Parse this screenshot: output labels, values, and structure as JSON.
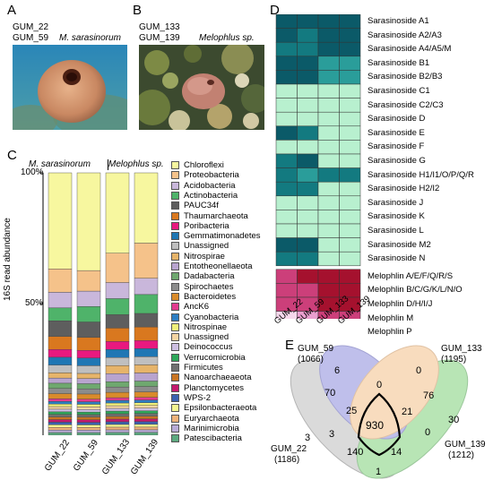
{
  "panels": {
    "A": "A",
    "B": "B",
    "C": "C",
    "D": "D",
    "E": "E"
  },
  "panelA": {
    "sample1": "GUM_22",
    "sample2": "GUM_59",
    "species": "M. sarasinorum"
  },
  "panelB": {
    "sample1": "GUM_133",
    "sample2": "GUM_139",
    "species": "Melophlus sp."
  },
  "panelC": {
    "species1": "M. sarasinorum",
    "species2": "Melophlus sp.",
    "ylabel": "16S read abundance",
    "yticks": [
      "100%",
      "50%"
    ]
  },
  "colors": {
    "Chloroflexi": "#f7f79f",
    "Proteobacteria": "#f5c28a",
    "Acidobacteria": "#c9b7db",
    "Actinobacteria": "#4fb36a",
    "PAUC34f": "#5e5e5e",
    "Thaumarchaeota": "#d9781f",
    "Poribacteria": "#e8197f",
    "Gemmatimonadetes": "#1f77b4",
    "Unassigned": "#bfbfbf",
    "Nitrospirae": "#e6b46a",
    "Entotheonellaeota": "#b8a4cf",
    "Dadabacteria": "#6fa86f",
    "Spirochaetes": "#8c8c8c",
    "Bacteroidetes": "#d98b2b",
    "AncK6": "#e33b8f",
    "Cyanobacteria": "#2e7ec2",
    "Nitrospinae": "#f0f07a",
    "Unassigned2": "#f4d4a2",
    "Deinococcus": "#cdbfe2",
    "Verrucomicrobia": "#2fa85a",
    "Firmicutes": "#707070",
    "Nanoarchaeaeota": "#c97522",
    "Planctomycetes": "#c41a6e",
    "WPS-2": "#3a62b0",
    "Epsilonbacteraeota": "#f5f58f",
    "Euryarchaeota": "#efb27a",
    "Marinimicrobia": "#b9abd6",
    "Patescibacteria": "#5daa80"
  },
  "chart_data": [
    {
      "type": "bar",
      "stacked": true,
      "orientation": "vertical",
      "categories": [
        "GUM_22",
        "GUM_59",
        "GUM_133",
        "GUM_139"
      ],
      "ylabel": "16S read abundance",
      "ylim": [
        0,
        100
      ],
      "legend_position": "right",
      "series": [
        {
          "name": "Chloroflexi",
          "values": [
            37,
            38,
            30,
            26
          ]
        },
        {
          "name": "Proteobacteria",
          "values": [
            9,
            8,
            11,
            13
          ]
        },
        {
          "name": "Acidobacteria",
          "values": [
            6,
            6,
            6,
            6
          ]
        },
        {
          "name": "Actinobacteria",
          "values": [
            5,
            6,
            6,
            7
          ]
        },
        {
          "name": "PAUC34f",
          "values": [
            6,
            6,
            5,
            5
          ]
        },
        {
          "name": "Thaumarchaeota",
          "values": [
            5,
            5,
            5,
            5
          ]
        },
        {
          "name": "Poribacteria",
          "values": [
            3,
            3,
            3,
            3
          ]
        },
        {
          "name": "Gemmatimonadetes",
          "values": [
            3,
            3,
            3,
            3
          ]
        },
        {
          "name": "Unassigned",
          "values": [
            3,
            3,
            3,
            3
          ]
        },
        {
          "name": "Nitrospirae",
          "values": [
            2,
            2,
            3,
            3
          ]
        },
        {
          "name": "Entotheonellaeota",
          "values": [
            2,
            2,
            3,
            3
          ]
        },
        {
          "name": "Dadabacteria",
          "values": [
            2,
            2,
            2,
            2
          ]
        },
        {
          "name": "Spirochaetes",
          "values": [
            2,
            2,
            2,
            2
          ]
        },
        {
          "name": "Bacteroidetes",
          "values": [
            2,
            2,
            2,
            2
          ]
        },
        {
          "name": "AncK6",
          "values": [
            1,
            1,
            1,
            1
          ]
        },
        {
          "name": "Cyanobacteria",
          "values": [
            1,
            1,
            1,
            1
          ]
        },
        {
          "name": "Nitrospinae",
          "values": [
            1,
            1,
            1,
            1
          ]
        },
        {
          "name": "Unassigned",
          "values": [
            1,
            1,
            1,
            1
          ]
        },
        {
          "name": "Deinococcus",
          "values": [
            1,
            1,
            1,
            1
          ]
        },
        {
          "name": "Verrucomicrobia",
          "values": [
            1,
            1,
            1,
            1
          ]
        },
        {
          "name": "Firmicutes",
          "values": [
            1,
            1,
            1,
            1
          ]
        },
        {
          "name": "Nanoarchaeaeota",
          "values": [
            1,
            1,
            1,
            1
          ]
        },
        {
          "name": "Planctomycetes",
          "values": [
            1,
            1,
            1,
            1
          ]
        },
        {
          "name": "WPS-2",
          "values": [
            1,
            1,
            1,
            1
          ]
        },
        {
          "name": "Epsilonbacteraeota",
          "values": [
            1,
            1,
            1,
            1
          ]
        },
        {
          "name": "Euryarchaeota",
          "values": [
            1,
            1,
            1,
            1
          ]
        },
        {
          "name": "Marinimicrobia",
          "values": [
            1,
            1,
            1,
            1
          ]
        },
        {
          "name": "Patescibacteria",
          "values": [
            1,
            1,
            1,
            1
          ]
        }
      ]
    },
    {
      "type": "heatmap",
      "columns": [
        "GUM_22",
        "GUM_59",
        "GUM_133",
        "GUM_139"
      ],
      "group1_rows": [
        "Sarasinoside A1",
        "Sarasinoside A2/A3",
        "Sarasinoside A4/A5/M",
        "Sarasinoside B1",
        "Sarasinoside B2/B3",
        "Sarasinoside C1",
        "Sarasinoside C2/C3",
        "Sarasinoside D",
        "Sarasinoside E",
        "Sarasinoside F",
        "Sarasinoside G",
        "Sarasinoside H1/I1/O/P/Q/R",
        "Sarasinoside H2/I2",
        "Sarasinoside J",
        "Sarasinoside K",
        "Sarasinoside L",
        "Sarasinoside M2",
        "Sarasinoside N"
      ],
      "group1_levels": [
        [
          3,
          3,
          3,
          3
        ],
        [
          3,
          2,
          3,
          3
        ],
        [
          2,
          2,
          3,
          3
        ],
        [
          3,
          3,
          1,
          1
        ],
        [
          3,
          3,
          1,
          1
        ],
        [
          0,
          0,
          0,
          0
        ],
        [
          0,
          0,
          0,
          0
        ],
        [
          0,
          0,
          0,
          0
        ],
        [
          3,
          2,
          0,
          0
        ],
        [
          0,
          0,
          0,
          0
        ],
        [
          2,
          3,
          0,
          0
        ],
        [
          2,
          1,
          2,
          2
        ],
        [
          2,
          2,
          0,
          0
        ],
        [
          0,
          0,
          0,
          0
        ],
        [
          0,
          0,
          0,
          0
        ],
        [
          0,
          0,
          0,
          0
        ],
        [
          3,
          3,
          0,
          0
        ],
        [
          2,
          2,
          0,
          0
        ]
      ],
      "group2_rows": [
        "Melophlin A/E/F/Q/R/S",
        "Melophlin B/C/G/K/L/N/O",
        "Melophlin D/H/I/J",
        "Melophlin M",
        "Melophlin P"
      ],
      "group2_levels": [
        [
          2,
          3,
          3,
          3
        ],
        [
          2,
          2,
          3,
          3
        ],
        [
          2,
          2,
          3,
          3
        ],
        [
          0,
          1,
          2,
          2
        ],
        [
          1,
          1,
          2,
          1
        ]
      ]
    },
    {
      "type": "venn",
      "sets": [
        {
          "name": "GUM_59",
          "total": "(1066)"
        },
        {
          "name": "GUM_133",
          "total": "(1195)"
        },
        {
          "name": "GUM_22",
          "total": "(1186)"
        },
        {
          "name": "GUM_139",
          "total": "(1212)"
        }
      ],
      "regions": {
        "only_59": "6",
        "only_133": "0",
        "only_22": "3",
        "only_139": "30",
        "59_133": "0",
        "59_22": "70",
        "133_139": "76",
        "22_139": "1",
        "59_22_133": "25",
        "59_133_139": "21",
        "59_22_139": "3",
        "22_133_139": "0",
        "22_139_b": "140",
        "133_139_b": "14",
        "all": "930"
      }
    }
  ]
}
